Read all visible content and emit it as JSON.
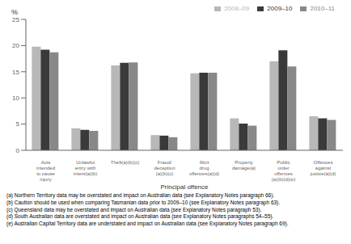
{
  "chart_data": {
    "type": "bar",
    "categories": [
      "Acts\nintended\nto cause\ninjury",
      "Unlawful\nentry with\nintent(a)(b)",
      "Theft(a)(b)(c)",
      "Fraud/\ndeception\n(a)(b)(c)",
      "Illicit\ndrug\noffences(a)(d)",
      "Property\ndamage(a)",
      "Public\norder\noffences\n(a)(b)(d)(e)",
      "Offences\nagainst\njustice(a)(d)"
    ],
    "series": [
      {
        "name": "2008–09",
        "color": "#b8b8b8",
        "values": [
          19.8,
          4.2,
          16.2,
          2.9,
          14.7,
          6.1,
          17.0,
          6.5
        ]
      },
      {
        "name": "2009–10",
        "color": "#3a3a3a",
        "values": [
          19.2,
          3.9,
          16.7,
          2.8,
          14.8,
          5.1,
          19.1,
          6.1
        ]
      },
      {
        "name": "2010–11",
        "color": "#888888",
        "values": [
          18.7,
          3.7,
          16.8,
          2.5,
          14.8,
          4.7,
          16.0,
          5.8
        ]
      }
    ],
    "ylabel": "%",
    "xlabel": "Principal offence",
    "ylim": [
      0,
      25
    ],
    "yticks": [
      0,
      5,
      10,
      15,
      20,
      25
    ],
    "legend": "upper right",
    "grid": false,
    "annotations": [
      "(a) Northern Territory data may be overstated and impact on Australian data (see Explanatory Notes paragraph 66).",
      "(b) Caution should be used when comparing Tasmanian data prior to 2009–10 (see Explanatory Notes paragraph 63).",
      "(c) Queensland data may be overstated and impact on Australian data (see Explanatory Notes paragraph 53).",
      "(d) South Australian data are overstated and impact on Australian data (see Explanatory Notes paragraphs 54–55).",
      "(e) Australian Capital Territory data are understated and impact on Australian data (see Explanatory Notes paragraph 69)."
    ]
  }
}
